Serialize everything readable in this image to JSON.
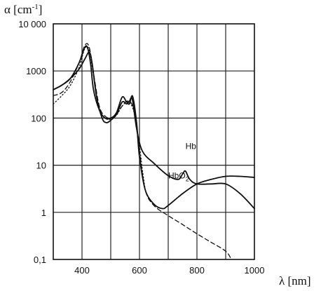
{
  "chart_data": {
    "type": "line",
    "ylabel": "α [cm⁻¹]",
    "xlabel": "λ [nm]",
    "x_scale": "linear",
    "y_scale": "log",
    "xlim": [
      300,
      1000
    ],
    "ylim": [
      0.1,
      10000
    ],
    "grid": true,
    "x_ticks": [
      "400",
      "600",
      "800",
      "1000"
    ],
    "y_ticks": [
      "0,1",
      "1",
      "10",
      "100",
      "1000",
      "10 000"
    ],
    "y_tick_values": [
      0.1,
      1,
      10,
      100,
      1000,
      10000
    ],
    "x_tick_values": [
      400,
      600,
      800,
      1000
    ],
    "series": [
      {
        "name": "Hb",
        "style": "solid",
        "x": [
          300,
          330,
          360,
          390,
          410,
          425,
          435,
          450,
          470,
          485,
          500,
          520,
          540,
          555,
          565,
          575,
          590,
          610,
          650,
          700,
          735,
          750,
          760,
          775,
          800,
          850,
          900,
          950,
          1000
        ],
        "values": [
          400,
          500,
          700,
          1100,
          1800,
          2500,
          1500,
          300,
          100,
          80,
          90,
          120,
          220,
          200,
          230,
          250,
          60,
          20,
          11,
          6,
          5,
          6.5,
          7.5,
          5,
          4,
          4,
          4,
          2.5,
          1.2
        ]
      },
      {
        "name": "HbO2",
        "style": "solid",
        "x": [
          300,
          330,
          360,
          390,
          410,
          420,
          430,
          440,
          460,
          480,
          500,
          520,
          540,
          555,
          565,
          576,
          590,
          600,
          620,
          650,
          680,
          700,
          750,
          800,
          850,
          900,
          950,
          1000
        ],
        "values": [
          400,
          500,
          700,
          1500,
          3200,
          3000,
          1400,
          400,
          150,
          100,
          100,
          130,
          280,
          220,
          200,
          290,
          80,
          15,
          3,
          1.5,
          1.2,
          1.4,
          2.5,
          4,
          5,
          5.8,
          5.8,
          5.5
        ]
      },
      {
        "name": "",
        "style": "dashed",
        "x": [
          300,
          330,
          360,
          390,
          410,
          425,
          440,
          460,
          480,
          500,
          520,
          540,
          560,
          580,
          600,
          620,
          650,
          700,
          750,
          800,
          850,
          900,
          920
        ],
        "values": [
          300,
          350,
          600,
          1500,
          3500,
          3200,
          900,
          180,
          110,
          100,
          120,
          180,
          230,
          150,
          20,
          3,
          1.4,
          0.85,
          0.55,
          0.35,
          0.23,
          0.15,
          0.1
        ]
      },
      {
        "name": "",
        "style": "dotted",
        "x": [
          300,
          330,
          360,
          390,
          410,
          425,
          440,
          460,
          480,
          500,
          520,
          540,
          560,
          580,
          600,
          610,
          620
        ],
        "values": [
          200,
          300,
          500,
          1200,
          3000,
          2800,
          800,
          160,
          100,
          95,
          115,
          180,
          220,
          140,
          25,
          8,
          3
        ]
      }
    ],
    "annotations": [
      {
        "text": "Hb",
        "x": 760,
        "y": 22
      },
      {
        "text": "HbO",
        "subscript": "2",
        "x": 700,
        "y": 5.2
      }
    ]
  }
}
